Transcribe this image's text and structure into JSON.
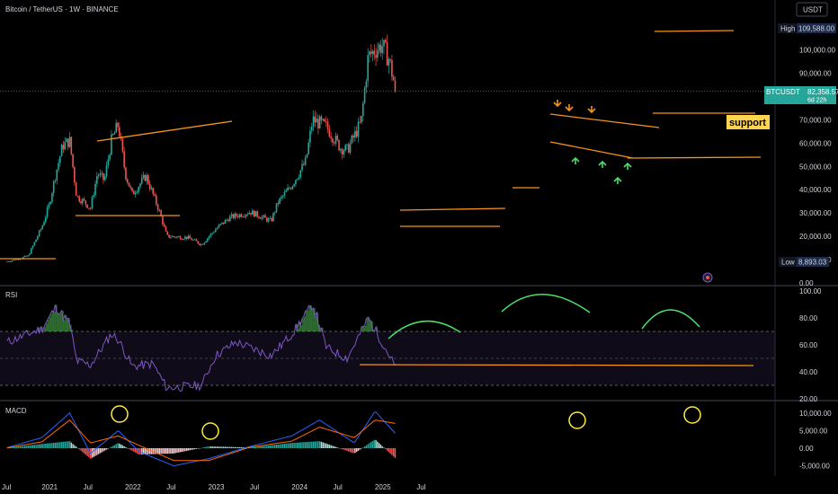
{
  "header": {
    "title": "Bitcoin / TetherUS · 1W · BINANCE"
  },
  "colors": {
    "up": "#26a69a",
    "down": "#ef5350",
    "orange": "#f7931a",
    "green": "#4cde6b",
    "rsi": "#7e57c2",
    "macd_line": "#2962ff",
    "signal_line": "#ff6d00",
    "yellow": "#ffeb3b",
    "support_bg": "#ffd54f"
  },
  "price_scale": {
    "currency": "USDT",
    "ticks": [
      "110,000.00",
      "100,000.00",
      "90,000.00",
      "80,000.00",
      "70,000.00",
      "60,000.00",
      "50,000.00",
      "40,000.00",
      "30,000.00",
      "20,000.00",
      "10,000.00",
      "0.00"
    ],
    "high_label": "High",
    "high_value": "109,588.00",
    "low_label": "Low",
    "low_value": "8,893.03",
    "symbol_label": "BTCUSDT",
    "last_price": "82,358.57",
    "countdown": "6d 22h"
  },
  "annotation": {
    "support_label": "support"
  },
  "rsi": {
    "title": "RSI",
    "ticks": [
      "100.00",
      "80.00",
      "60.00",
      "40.00",
      "20.00"
    ]
  },
  "macd": {
    "title": "MACD",
    "ticks": [
      "10,000.00",
      "5,000.00",
      "0.00",
      "-5,000.00"
    ]
  },
  "time_axis": {
    "labels": [
      "Jul",
      "2021",
      "Jul",
      "2022",
      "Jul",
      "2023",
      "Jul",
      "2024",
      "Jul",
      "2025",
      "Jul"
    ]
  },
  "chart_data": [
    {
      "type": "candlestick",
      "title": "Bitcoin / TetherUS · 1W · BINANCE",
      "ylim": [
        0,
        110000
      ],
      "anchors": [
        {
          "date": "2020-07",
          "close": 9200
        },
        {
          "date": "2020-10",
          "close": 11500
        },
        {
          "date": "2020-12",
          "close": 24000
        },
        {
          "date": "2021-01",
          "close": 33000
        },
        {
          "date": "2021-02",
          "close": 47000
        },
        {
          "date": "2021-03",
          "close": 59000
        },
        {
          "date": "2021-04",
          "close": 61000
        },
        {
          "date": "2021-05",
          "close": 37000
        },
        {
          "date": "2021-06",
          "close": 35000
        },
        {
          "date": "2021-07",
          "close": 32000
        },
        {
          "date": "2021-08",
          "close": 47000
        },
        {
          "date": "2021-09",
          "close": 44000
        },
        {
          "date": "2021-10",
          "close": 61000
        },
        {
          "date": "2021-11",
          "close": 68000
        },
        {
          "date": "2021-12",
          "close": 47000
        },
        {
          "date": "2022-01",
          "close": 38000
        },
        {
          "date": "2022-03",
          "close": 46000
        },
        {
          "date": "2022-05",
          "close": 30000
        },
        {
          "date": "2022-06",
          "close": 20000
        },
        {
          "date": "2022-09",
          "close": 19500
        },
        {
          "date": "2022-11",
          "close": 16500
        },
        {
          "date": "2023-01",
          "close": 23000
        },
        {
          "date": "2023-03",
          "close": 28000
        },
        {
          "date": "2023-06",
          "close": 30500
        },
        {
          "date": "2023-09",
          "close": 26500
        },
        {
          "date": "2023-10",
          "close": 34500
        },
        {
          "date": "2023-12",
          "close": 42000
        },
        {
          "date": "2024-02",
          "close": 52000
        },
        {
          "date": "2024-03",
          "close": 70000
        },
        {
          "date": "2024-05",
          "close": 67000
        },
        {
          "date": "2024-07",
          "close": 58000
        },
        {
          "date": "2024-08",
          "close": 57000
        },
        {
          "date": "2024-10",
          "close": 69000
        },
        {
          "date": "2024-11",
          "close": 97000
        },
        {
          "date": "2024-12",
          "close": 100000
        },
        {
          "date": "2025-01",
          "close": 102000
        },
        {
          "date": "2025-02",
          "close": 96000
        },
        {
          "date": "2025-03",
          "close": 82358.57
        }
      ],
      "high": 109588,
      "low": 8893.03,
      "last": 82358.57
    },
    {
      "type": "line",
      "title": "RSI",
      "ylim": [
        20,
        100
      ],
      "anchors": [
        {
          "date": "2020-07",
          "value": 62
        },
        {
          "date": "2020-12",
          "value": 72
        },
        {
          "date": "2021-02",
          "value": 88
        },
        {
          "date": "2021-04",
          "value": 76
        },
        {
          "date": "2021-05",
          "value": 48
        },
        {
          "date": "2021-07",
          "value": 45
        },
        {
          "date": "2021-10",
          "value": 68
        },
        {
          "date": "2021-11",
          "value": 64
        },
        {
          "date": "2022-01",
          "value": 44
        },
        {
          "date": "2022-04",
          "value": 46
        },
        {
          "date": "2022-06",
          "value": 28
        },
        {
          "date": "2022-11",
          "value": 30
        },
        {
          "date": "2023-01",
          "value": 52
        },
        {
          "date": "2023-04",
          "value": 62
        },
        {
          "date": "2023-09",
          "value": 52
        },
        {
          "date": "2023-12",
          "value": 68
        },
        {
          "date": "2024-03",
          "value": 90
        },
        {
          "date": "2024-05",
          "value": 58
        },
        {
          "date": "2024-08",
          "value": 50
        },
        {
          "date": "2024-11",
          "value": 80
        },
        {
          "date": "2025-01",
          "value": 62
        },
        {
          "date": "2025-03",
          "value": 43
        }
      ]
    },
    {
      "type": "bar",
      "title": "MACD",
      "ylim": [
        -7000,
        12000
      ],
      "anchors": [
        {
          "date": "2020-07",
          "macd": 200,
          "signal": 100
        },
        {
          "date": "2020-12",
          "macd": 3000,
          "signal": 1800
        },
        {
          "date": "2021-04",
          "macd": 10000,
          "signal": 8000
        },
        {
          "date": "2021-07",
          "macd": -1500,
          "signal": 1500
        },
        {
          "date": "2021-11",
          "macd": 5000,
          "signal": 3500
        },
        {
          "date": "2022-02",
          "macd": -1000,
          "signal": 800
        },
        {
          "date": "2022-07",
          "macd": -5000,
          "signal": -3500
        },
        {
          "date": "2022-12",
          "macd": -3000,
          "signal": -3500
        },
        {
          "date": "2023-06",
          "macd": 500,
          "signal": 300
        },
        {
          "date": "2023-12",
          "macd": 3500,
          "signal": 2000
        },
        {
          "date": "2024-04",
          "macd": 8000,
          "signal": 6000
        },
        {
          "date": "2024-09",
          "macd": 1500,
          "signal": 3000
        },
        {
          "date": "2024-12",
          "macd": 10500,
          "signal": 8000
        },
        {
          "date": "2025-03",
          "macd": 4000,
          "signal": 7000
        }
      ]
    }
  ]
}
